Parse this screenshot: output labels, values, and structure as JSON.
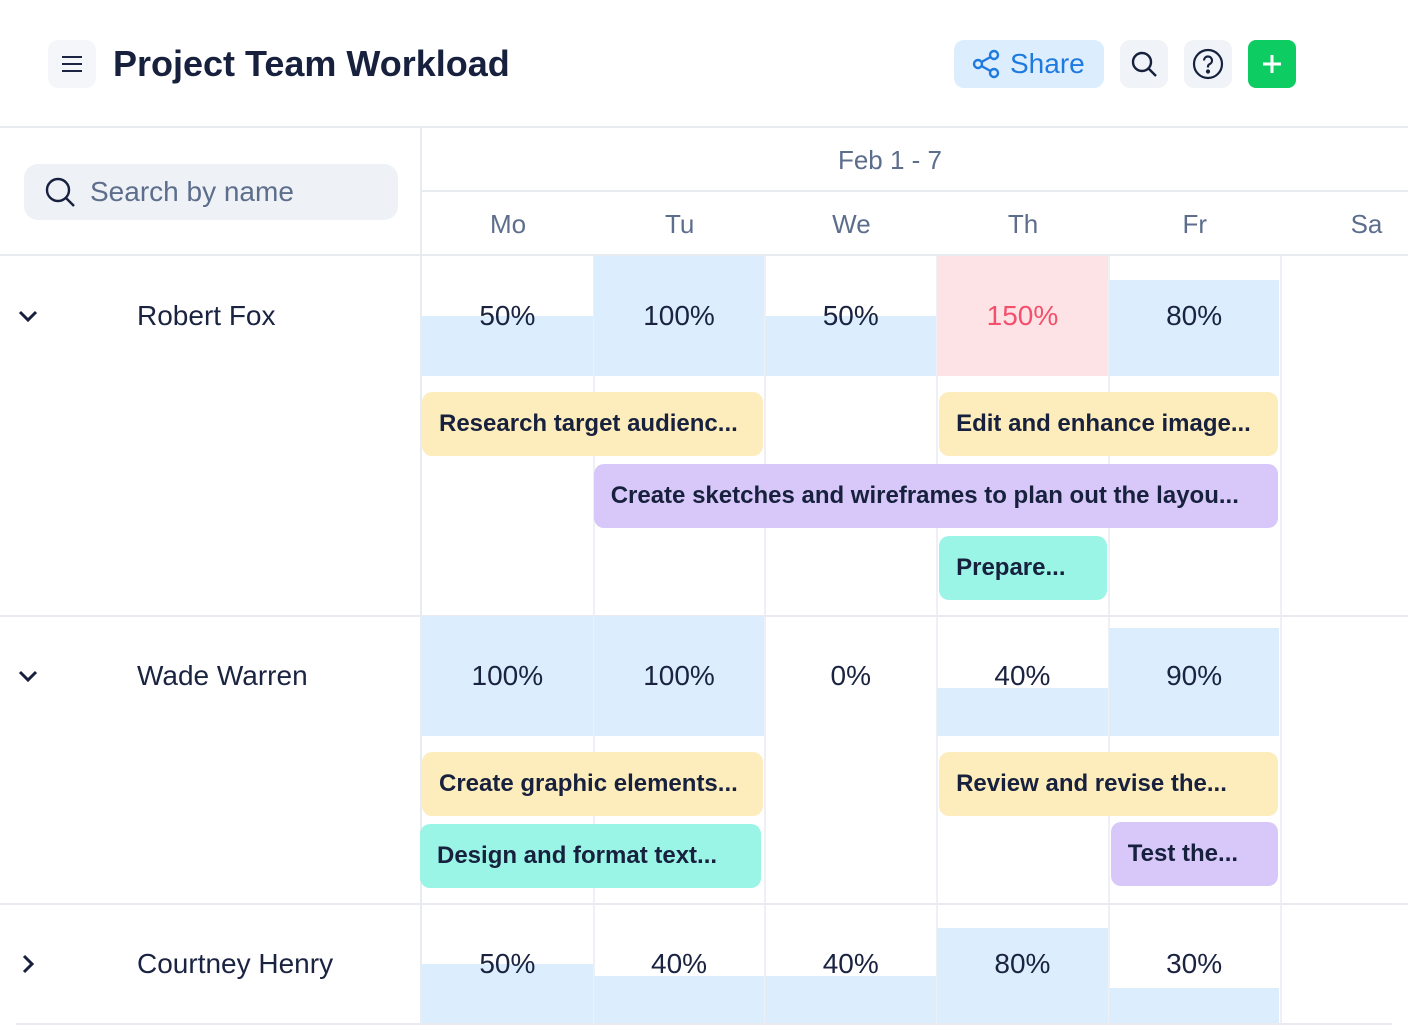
{
  "header": {
    "title": "Project Team Workload",
    "share_label": "Share",
    "icons": [
      "menu-icon",
      "share-icon",
      "search-icon",
      "help-icon",
      "plus-icon"
    ]
  },
  "search": {
    "placeholder": "Search by name",
    "value": ""
  },
  "calendar": {
    "week_label": "Feb 1 - 7",
    "days": [
      "Mo",
      "Tu",
      "We",
      "Th",
      "Fr",
      "Sa"
    ]
  },
  "colors": {
    "load_fill": "#dcedfd",
    "overload_fill": "#fee3e6",
    "overload_text": "#f4506b",
    "task_yellow": "#feedbc",
    "task_purple": "#d8c8fa",
    "task_teal": "#9af5e6",
    "accent_green": "#0dcd62",
    "accent_blue": "#1f7ae0"
  },
  "people": [
    {
      "name": "Robert Fox",
      "expanded": true,
      "workload": [
        50,
        100,
        50,
        150,
        80
      ],
      "workload_labels": [
        "50%",
        "100%",
        "50%",
        "150%",
        "80%"
      ],
      "tasks": [
        {
          "label": "Research target audienc...",
          "start": "Mo",
          "end": "Tu",
          "color": "task_yellow"
        },
        {
          "label": "Edit and enhance image...",
          "start": "Th",
          "end": "Fr",
          "color": "task_yellow"
        },
        {
          "label": "Create sketches and wireframes to plan out the layou...",
          "start": "Tu",
          "end": "Fr",
          "color": "task_purple"
        },
        {
          "label": "Prepare...",
          "start": "Th",
          "end": "Th",
          "color": "task_teal"
        }
      ]
    },
    {
      "name": "Wade Warren",
      "expanded": true,
      "workload": [
        100,
        100,
        0,
        40,
        90
      ],
      "workload_labels": [
        "100%",
        "100%",
        "0%",
        "40%",
        "90%"
      ],
      "tasks": [
        {
          "label": "Create graphic elements...",
          "start": "Mo",
          "end": "Tu",
          "color": "task_yellow"
        },
        {
          "label": "Review and revise the...",
          "start": "Th",
          "end": "Fr",
          "color": "task_yellow"
        },
        {
          "label": "Design and format text...",
          "start": "Mo",
          "end": "Tu",
          "color": "task_teal"
        },
        {
          "label": "Test the...",
          "start": "Fr",
          "end": "Fr",
          "color": "task_purple"
        }
      ]
    },
    {
      "name": "Courtney Henry",
      "expanded": false,
      "workload": [
        50,
        40,
        40,
        80,
        30
      ],
      "workload_labels": [
        "50%",
        "40%",
        "40%",
        "80%",
        "30%"
      ],
      "tasks": []
    }
  ]
}
